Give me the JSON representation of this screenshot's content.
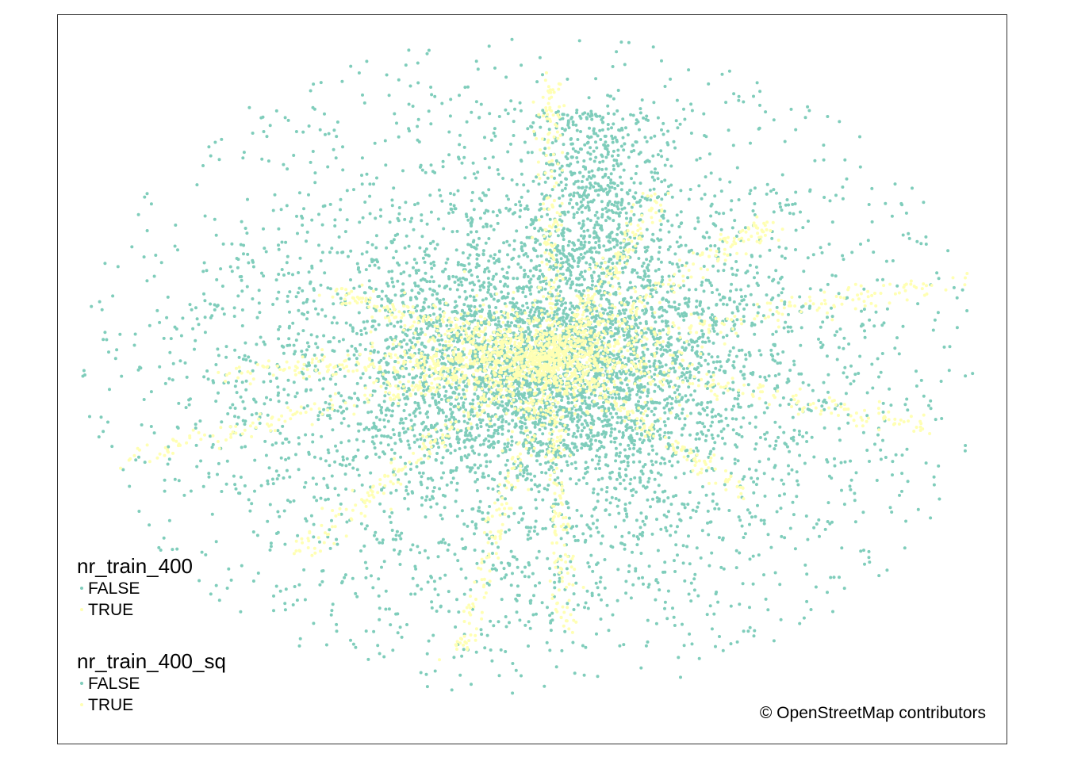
{
  "map": {
    "basemap_credit": "© OpenStreetMap contributors",
    "point_colors": {
      "false": "#7fcdbb",
      "true": "#ffffb3"
    }
  },
  "legends": [
    {
      "title": "nr_train_400",
      "items": [
        {
          "label": "FALSE",
          "color": "#7fcdbb"
        },
        {
          "label": "TRUE",
          "color": "#ffffb3"
        }
      ]
    },
    {
      "title": "nr_train_400_sq",
      "items": [
        {
          "label": "FALSE",
          "color": "#7fcdbb"
        },
        {
          "label": "TRUE",
          "color": "#ffffb3"
        }
      ]
    }
  ]
}
